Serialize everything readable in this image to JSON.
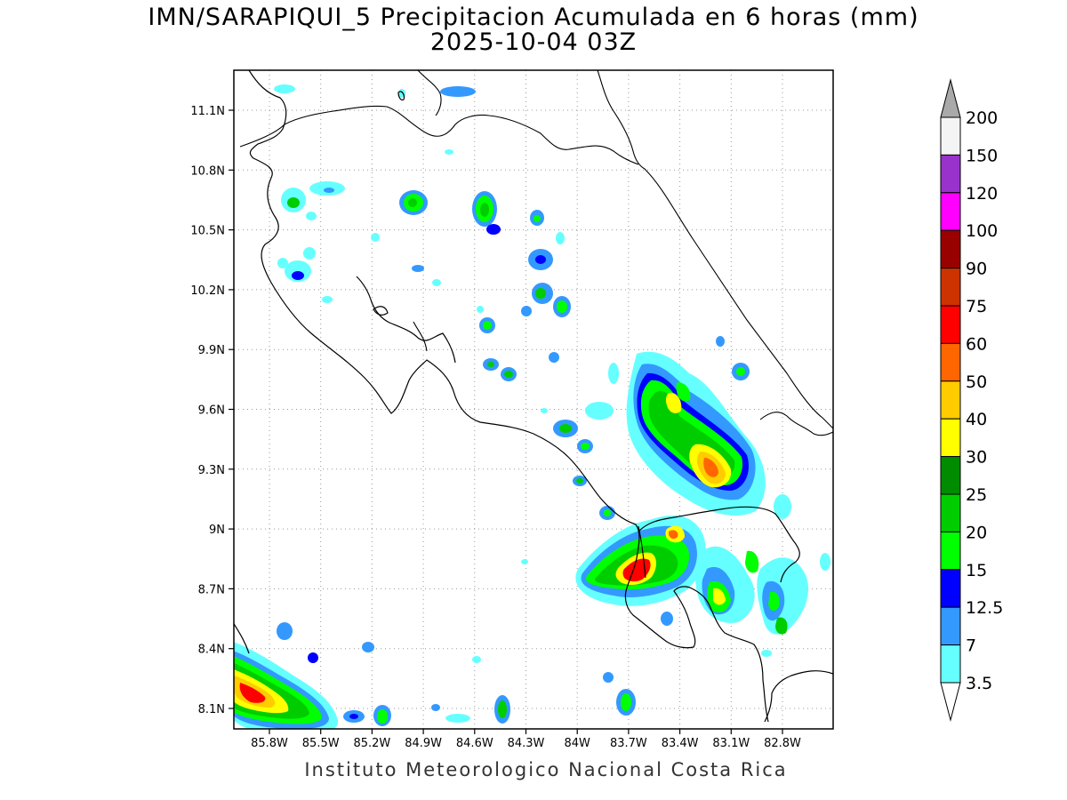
{
  "title": {
    "line1": "IMN/SARAPIQUI_5 Precipitacion Acumulada en 6 horas (mm)",
    "line2": "2025-10-04 03Z"
  },
  "footer": "Instituto Meteorologico Nacional Costa Rica",
  "lat_labels": [
    "11.1N",
    "10.8N",
    "10.5N",
    "10.2N",
    "9.9N",
    "9.6N",
    "9.3N",
    "9N",
    "8.7N",
    "8.4N",
    "8.1N"
  ],
  "lon_labels": [
    "85.8W",
    "85.5W",
    "85.2W",
    "84.9W",
    "84.6W",
    "84.3W",
    "84W",
    "83.7W",
    "83.4W",
    "83.1W",
    "82.8W"
  ],
  "legend": {
    "levels": [
      "200",
      "150",
      "120",
      "100",
      "90",
      "75",
      "60",
      "50",
      "40",
      "30",
      "25",
      "20",
      "15",
      "12.5",
      "7",
      "3.5"
    ],
    "colors": [
      "#f4f4f4",
      "#9932cc",
      "#ff00ff",
      "#990000",
      "#cc3300",
      "#ff0000",
      "#ff6600",
      "#ffcc00",
      "#ffff00",
      "#008b00",
      "#00cd00",
      "#00ff00",
      "#0000ff",
      "#3399ff",
      "#66ffff"
    ],
    "top_arrow_color": "#a9a9a9",
    "bottom_arrow_color": "#ffffff"
  }
}
